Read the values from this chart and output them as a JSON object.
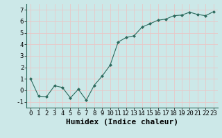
{
  "x": [
    0,
    1,
    2,
    3,
    4,
    5,
    6,
    7,
    8,
    9,
    10,
    11,
    12,
    13,
    14,
    15,
    16,
    17,
    18,
    19,
    20,
    21,
    22,
    23
  ],
  "y": [
    1.0,
    -0.5,
    -0.55,
    0.4,
    0.25,
    -0.65,
    0.1,
    -0.85,
    0.45,
    1.25,
    2.2,
    4.2,
    4.6,
    4.75,
    5.5,
    5.8,
    6.1,
    6.2,
    6.5,
    6.55,
    6.8,
    6.6,
    6.5,
    6.85
  ],
  "xlabel": "Humidex (Indice chaleur)",
  "ylim": [
    -1.5,
    7.5
  ],
  "xlim": [
    -0.5,
    23.5
  ],
  "yticks": [
    -1,
    0,
    1,
    2,
    3,
    4,
    5,
    6,
    7
  ],
  "xticks": [
    0,
    1,
    2,
    3,
    4,
    5,
    6,
    7,
    8,
    9,
    10,
    11,
    12,
    13,
    14,
    15,
    16,
    17,
    18,
    19,
    20,
    21,
    22,
    23
  ],
  "line_color": "#2d6b5e",
  "marker": "D",
  "marker_size": 2.0,
  "bg_color": "#cce8e8",
  "grid_color": "#e8c8c8",
  "tick_label_fontsize": 6.5,
  "xlabel_fontsize": 8.0
}
